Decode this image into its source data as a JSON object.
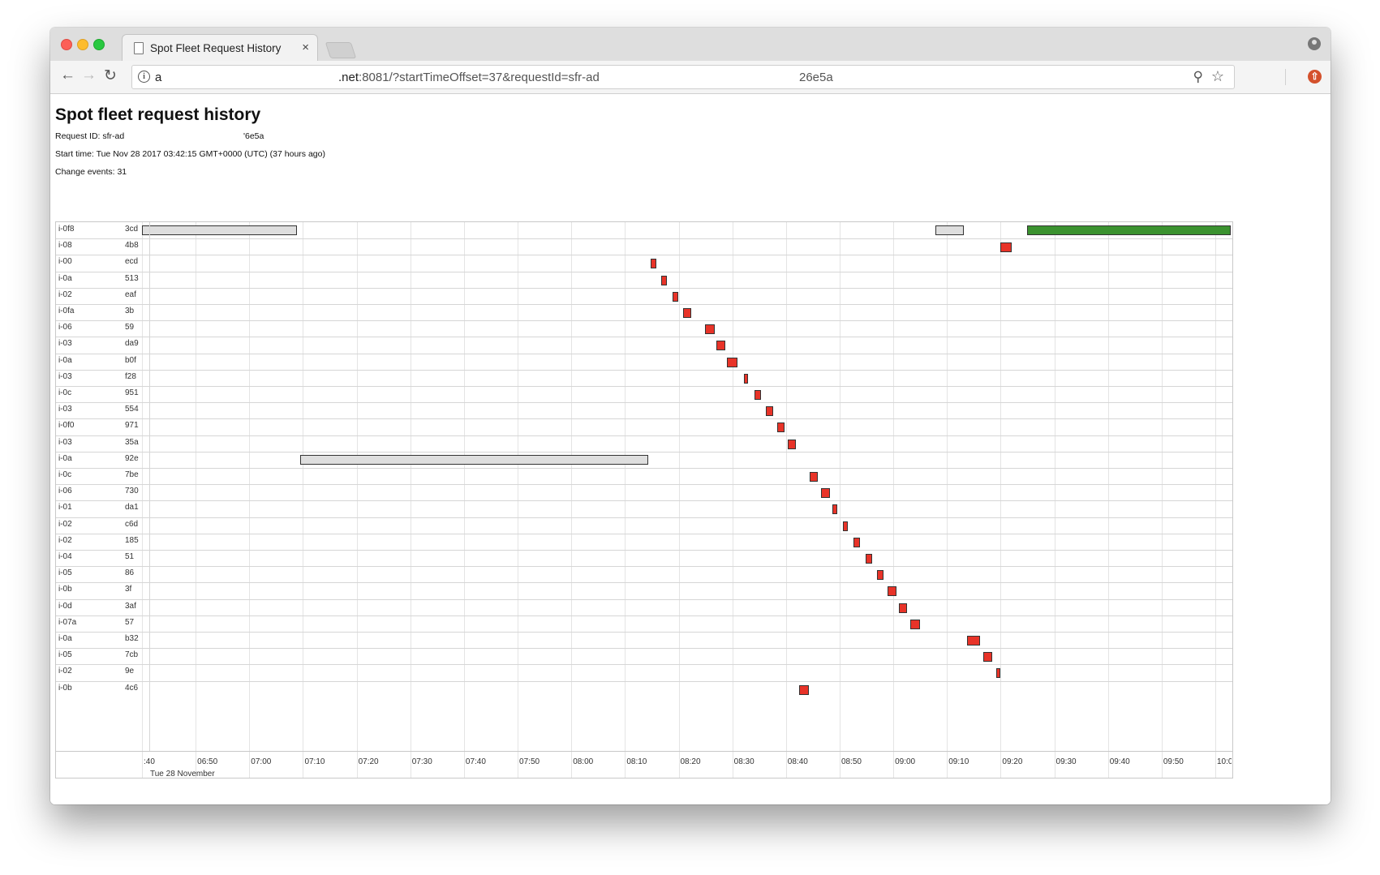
{
  "browser": {
    "tab_title": "Spot Fleet Request History",
    "tab_close": "×",
    "url_prefix": "a",
    "url_host": ".net",
    "url_path": ":8081/?startTimeOffset=37&requestId=sfr-ad",
    "url_tail": "26e5a",
    "info_glyph": "i",
    "zoom_glyph": "⚲",
    "star_glyph": "☆",
    "ext_glyph": "⇧",
    "back_glyph": "←",
    "forward_glyph": "→",
    "reload_glyph": "↻"
  },
  "page": {
    "title": "Spot fleet request history",
    "request_id_label": "Request ID: sfr-ad",
    "request_id_tail": "'6e5a",
    "start_time": "Start time: Tue Nov 28 2017 03:42:15 GMT+0000 (UTC) (37 hours ago)",
    "change_events": "Change events: 31"
  },
  "timeline": {
    "date_label": "Tue 28 November",
    "axis_start_min": 400,
    "axis_end_min": 603,
    "ticks": [
      ":40",
      "06:50",
      "07:00",
      "07:10",
      "07:20",
      "07:30",
      "07:40",
      "07:50",
      "08:00",
      "08:10",
      "08:20",
      "08:30",
      "08:40",
      "08:50",
      "09:00",
      "09:10",
      "09:20",
      "09:30",
      "09:40",
      "09:50",
      "10:00"
    ],
    "colors": {
      "red": "#e83328",
      "grey": "#dedede",
      "green": "#3b922f"
    },
    "rows": [
      {
        "prefix": "i-0f8",
        "suffix": "3cd",
        "bars": [
          {
            "start": 400,
            "end": 428.8,
            "color": "grey"
          },
          {
            "start": 547.8,
            "end": 553.2,
            "color": "grey"
          },
          {
            "start": 565,
            "end": 603,
            "color": "green"
          }
        ]
      },
      {
        "prefix": "i-08",
        "suffix": "4b8",
        "bars": [
          {
            "start": 559.9,
            "end": 562.0,
            "color": "red"
          }
        ]
      },
      {
        "prefix": "i-00",
        "suffix": "ecd",
        "bars": [
          {
            "start": 494.8,
            "end": 495.8,
            "color": "red"
          }
        ]
      },
      {
        "prefix": "i-0a",
        "suffix": "513",
        "bars": [
          {
            "start": 496.8,
            "end": 497.8,
            "color": "red"
          }
        ]
      },
      {
        "prefix": "i-02",
        "suffix": "eaf",
        "bars": [
          {
            "start": 498.8,
            "end": 499.9,
            "color": "red"
          }
        ]
      },
      {
        "prefix": "i-0fa",
        "suffix": "3b",
        "bars": [
          {
            "start": 500.9,
            "end": 502.3,
            "color": "red"
          }
        ]
      },
      {
        "prefix": "i-06",
        "suffix": "59",
        "bars": [
          {
            "start": 504.9,
            "end": 506.7,
            "color": "red"
          }
        ]
      },
      {
        "prefix": "i-03",
        "suffix": "da9",
        "bars": [
          {
            "start": 507.0,
            "end": 508.7,
            "color": "red"
          }
        ]
      },
      {
        "prefix": "i-0a",
        "suffix": "b0f",
        "bars": [
          {
            "start": 509.0,
            "end": 511.0,
            "color": "red"
          }
        ]
      },
      {
        "prefix": "i-03",
        "suffix": "f28",
        "bars": [
          {
            "start": 512.1,
            "end": 513.0,
            "color": "red"
          }
        ]
      },
      {
        "prefix": "i-0c",
        "suffix": "951",
        "bars": [
          {
            "start": 514.2,
            "end": 515.3,
            "color": "red"
          }
        ]
      },
      {
        "prefix": "i-03",
        "suffix": "554",
        "bars": [
          {
            "start": 516.3,
            "end": 517.6,
            "color": "red"
          }
        ]
      },
      {
        "prefix": "i-0f0",
        "suffix": "971",
        "bars": [
          {
            "start": 518.3,
            "end": 519.8,
            "color": "red"
          }
        ]
      },
      {
        "prefix": "i-03",
        "suffix": "35a",
        "bars": [
          {
            "start": 520.4,
            "end": 521.8,
            "color": "red"
          }
        ]
      },
      {
        "prefix": "i-0a",
        "suffix": "92e",
        "bars": [
          {
            "start": 429.5,
            "end": 494.3,
            "color": "grey"
          }
        ]
      },
      {
        "prefix": "i-0c",
        "suffix": "7be",
        "bars": [
          {
            "start": 524.4,
            "end": 526.0,
            "color": "red"
          }
        ]
      },
      {
        "prefix": "i-06",
        "suffix": "730",
        "bars": [
          {
            "start": 526.5,
            "end": 528.2,
            "color": "red"
          }
        ]
      },
      {
        "prefix": "i-01",
        "suffix": "da1",
        "bars": [
          {
            "start": 528.6,
            "end": 529.5,
            "color": "red"
          }
        ]
      },
      {
        "prefix": "i-02",
        "suffix": "c6d",
        "bars": [
          {
            "start": 530.6,
            "end": 531.5,
            "color": "red"
          }
        ]
      },
      {
        "prefix": "i-02",
        "suffix": "185",
        "bars": [
          {
            "start": 532.6,
            "end": 533.8,
            "color": "red"
          }
        ]
      },
      {
        "prefix": "i-04",
        "suffix": "51",
        "bars": [
          {
            "start": 534.8,
            "end": 536.0,
            "color": "red"
          }
        ]
      },
      {
        "prefix": "i-05",
        "suffix": "86",
        "bars": [
          {
            "start": 536.9,
            "end": 538.2,
            "color": "red"
          }
        ]
      },
      {
        "prefix": "i-0b",
        "suffix": "3f",
        "bars": [
          {
            "start": 539.0,
            "end": 540.6,
            "color": "red"
          }
        ]
      },
      {
        "prefix": "i-0d",
        "suffix": "3af",
        "bars": [
          {
            "start": 541.0,
            "end": 542.6,
            "color": "red"
          }
        ]
      },
      {
        "prefix": "i-07a",
        "suffix": "57",
        "bars": [
          {
            "start": 543.1,
            "end": 544.9,
            "color": "red"
          }
        ]
      },
      {
        "prefix": "i-0a",
        "suffix": "b32",
        "bars": [
          {
            "start": 553.7,
            "end": 556.2,
            "color": "red"
          }
        ]
      },
      {
        "prefix": "i-05",
        "suffix": "7cb",
        "bars": [
          {
            "start": 556.8,
            "end": 558.5,
            "color": "red"
          }
        ]
      },
      {
        "prefix": "i-02",
        "suffix": "9e",
        "bars": [
          {
            "start": 559.2,
            "end": 559.8,
            "color": "red"
          }
        ]
      },
      {
        "prefix": "i-0b",
        "suffix": "4c6",
        "bars": [
          {
            "start": 522.5,
            "end": 524.2,
            "color": "red"
          }
        ]
      }
    ]
  }
}
